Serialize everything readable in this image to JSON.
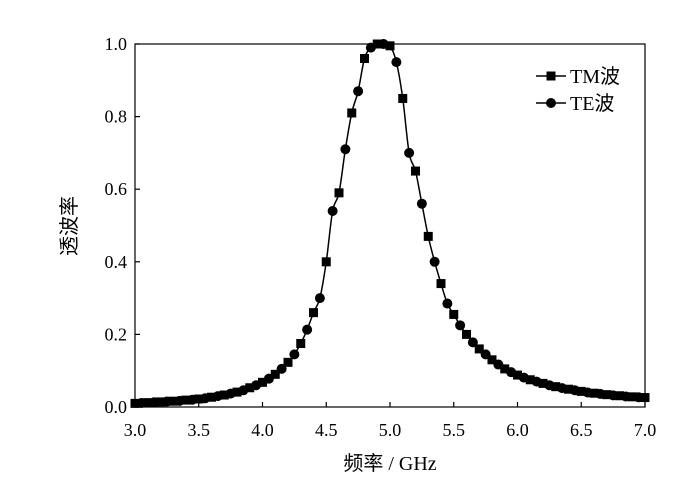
{
  "chart_data": {
    "type": "line",
    "title": "",
    "xlabel": "频率 / GHz",
    "ylabel": "透波率",
    "xlim": [
      3.0,
      7.0
    ],
    "ylim": [
      0.0,
      1.0
    ],
    "xticks": [
      "3.0",
      "3.5",
      "4.0",
      "4.5",
      "5.0",
      "5.5",
      "6.0",
      "6.5",
      "7.0"
    ],
    "yticks": [
      "0.0",
      "0.2",
      "0.4",
      "0.6",
      "0.8",
      "1.0"
    ],
    "grid": false,
    "legend_position": "top-right",
    "series": [
      {
        "name": "TM波",
        "marker": "square",
        "x": [
          3.0,
          3.1,
          3.2,
          3.3,
          3.4,
          3.5,
          3.6,
          3.7,
          3.8,
          3.9,
          4.0,
          4.1,
          4.2,
          4.3,
          4.4,
          4.5,
          4.6,
          4.7,
          4.8,
          4.9,
          5.0,
          5.1,
          5.2,
          5.3,
          5.4,
          5.5,
          5.6,
          5.7,
          5.8,
          5.9,
          6.0,
          6.1,
          6.2,
          6.3,
          6.4,
          6.5,
          6.6,
          6.7,
          6.8,
          6.9,
          7.0
        ],
        "values": [
          0.01,
          0.012,
          0.014,
          0.016,
          0.019,
          0.022,
          0.027,
          0.033,
          0.041,
          0.053,
          0.068,
          0.09,
          0.123,
          0.175,
          0.26,
          0.4,
          0.59,
          0.81,
          0.96,
          1.0,
          0.995,
          0.85,
          0.65,
          0.47,
          0.34,
          0.255,
          0.2,
          0.16,
          0.13,
          0.105,
          0.088,
          0.075,
          0.065,
          0.056,
          0.049,
          0.043,
          0.038,
          0.034,
          0.031,
          0.028,
          0.026
        ]
      },
      {
        "name": "TE波",
        "marker": "circle",
        "x": [
          3.05,
          3.15,
          3.25,
          3.35,
          3.45,
          3.55,
          3.65,
          3.75,
          3.85,
          3.95,
          4.05,
          4.15,
          4.25,
          4.35,
          4.45,
          4.55,
          4.65,
          4.75,
          4.85,
          4.95,
          5.05,
          5.15,
          5.25,
          5.35,
          5.45,
          5.55,
          5.65,
          5.75,
          5.85,
          5.95,
          6.05,
          6.15,
          6.25,
          6.35,
          6.45,
          6.55,
          6.65,
          6.75,
          6.85,
          6.95
        ],
        "values": [
          0.011,
          0.013,
          0.015,
          0.017,
          0.02,
          0.024,
          0.03,
          0.037,
          0.046,
          0.06,
          0.078,
          0.105,
          0.145,
          0.213,
          0.3,
          0.54,
          0.71,
          0.87,
          0.99,
          1.0,
          0.95,
          0.7,
          0.56,
          0.4,
          0.285,
          0.225,
          0.178,
          0.145,
          0.117,
          0.096,
          0.081,
          0.07,
          0.06,
          0.052,
          0.046,
          0.04,
          0.036,
          0.032,
          0.029,
          0.027
        ]
      }
    ]
  }
}
